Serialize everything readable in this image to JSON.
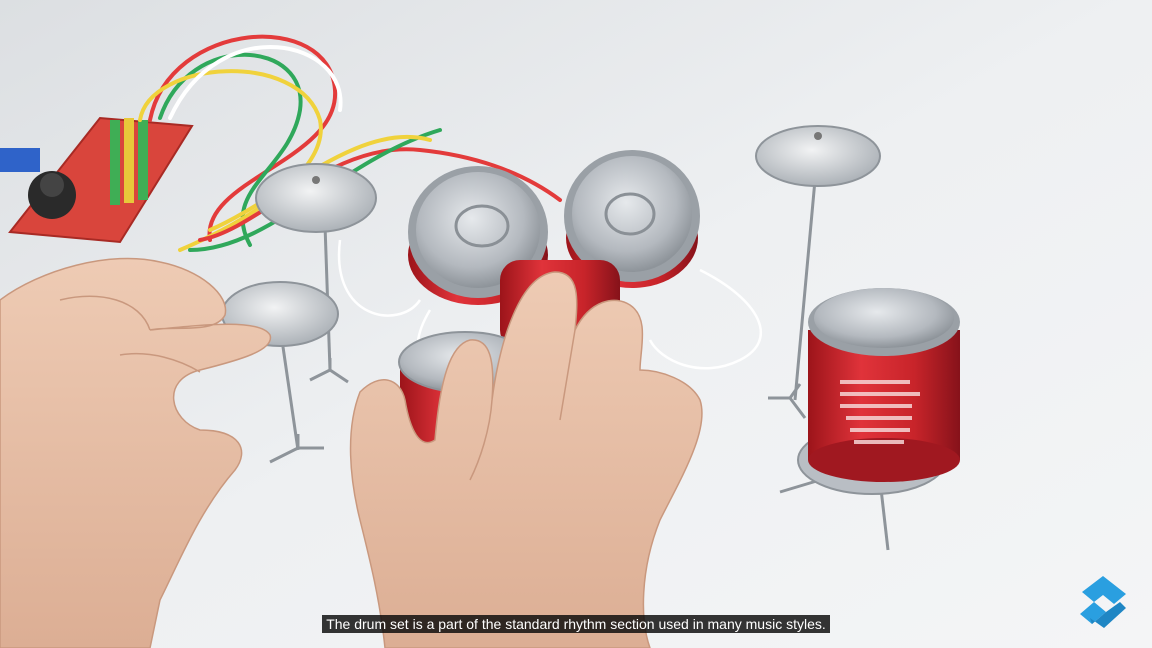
{
  "video": {
    "subtitle": "The drum set is a part of the standard rhythm section used in many music styles."
  },
  "logo": {
    "icon": "s-logo-icon",
    "color": "#2a9fe0"
  },
  "colors": {
    "background": "#eceef0",
    "can_red": "#c8242a",
    "board_red": "#d9453c",
    "metal": "#b9bec4",
    "skin": "#e8c0a8"
  }
}
